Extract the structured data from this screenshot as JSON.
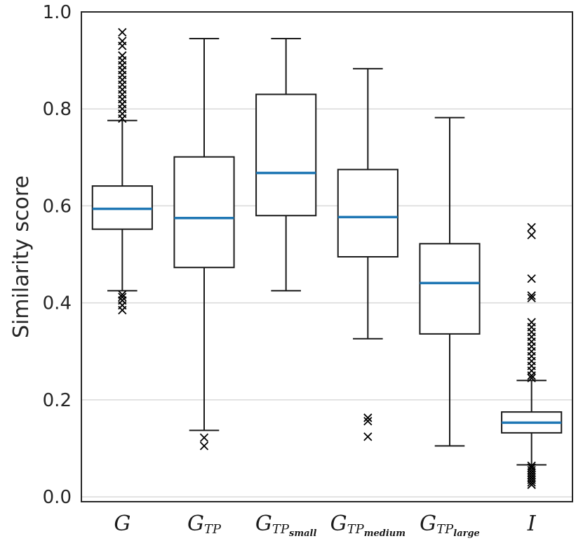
{
  "chart_data": {
    "type": "boxplot",
    "ylabel": "Similarity score",
    "xlabel": "",
    "ylim": [
      -0.01,
      1.0
    ],
    "yticks": [
      0.0,
      0.2,
      0.4,
      0.6,
      0.8,
      1.0
    ],
    "ytick_labels": [
      "0.0",
      "0.2",
      "0.4",
      "0.6",
      "0.8",
      "1.0"
    ],
    "grid": "horizontal",
    "median_color": "#1f77b4",
    "categories": [
      {
        "main": "G",
        "sub": "",
        "subsub": ""
      },
      {
        "main": "G",
        "sub": "TP",
        "subsub": ""
      },
      {
        "main": "G",
        "sub": "TP",
        "subsub": "small"
      },
      {
        "main": "G",
        "sub": "TP",
        "subsub": "medium"
      },
      {
        "main": "G",
        "sub": "TP",
        "subsub": "large"
      },
      {
        "main": "I",
        "sub": "",
        "subsub": ""
      }
    ],
    "boxes": [
      {
        "whislo": 0.425,
        "q1": 0.552,
        "med": 0.594,
        "q3": 0.641,
        "whishi": 0.776,
        "fliers": [
          0.385,
          0.395,
          0.405,
          0.412,
          0.417,
          0.78,
          0.79,
          0.8,
          0.81,
          0.82,
          0.83,
          0.84,
          0.85,
          0.86,
          0.87,
          0.88,
          0.89,
          0.9,
          0.91,
          0.93,
          0.94,
          0.958
        ]
      },
      {
        "whislo": 0.137,
        "q1": 0.473,
        "med": 0.575,
        "q3": 0.701,
        "whishi": 0.945,
        "fliers": [
          0.105,
          0.122
        ]
      },
      {
        "whislo": 0.425,
        "q1": 0.58,
        "med": 0.668,
        "q3": 0.83,
        "whishi": 0.945,
        "fliers": []
      },
      {
        "whislo": 0.326,
        "q1": 0.495,
        "med": 0.577,
        "q3": 0.675,
        "whishi": 0.883,
        "fliers": [
          0.124,
          0.156,
          0.163
        ]
      },
      {
        "whislo": 0.105,
        "q1": 0.336,
        "med": 0.441,
        "q3": 0.522,
        "whishi": 0.782,
        "fliers": []
      },
      {
        "whislo": 0.066,
        "q1": 0.132,
        "med": 0.153,
        "q3": 0.175,
        "whishi": 0.24,
        "fliers": [
          0.025,
          0.03,
          0.035,
          0.04,
          0.045,
          0.05,
          0.055,
          0.06,
          0.064,
          0.245,
          0.25,
          0.26,
          0.27,
          0.28,
          0.29,
          0.3,
          0.31,
          0.32,
          0.33,
          0.34,
          0.35,
          0.36,
          0.41,
          0.415,
          0.45,
          0.54,
          0.556
        ]
      }
    ]
  }
}
